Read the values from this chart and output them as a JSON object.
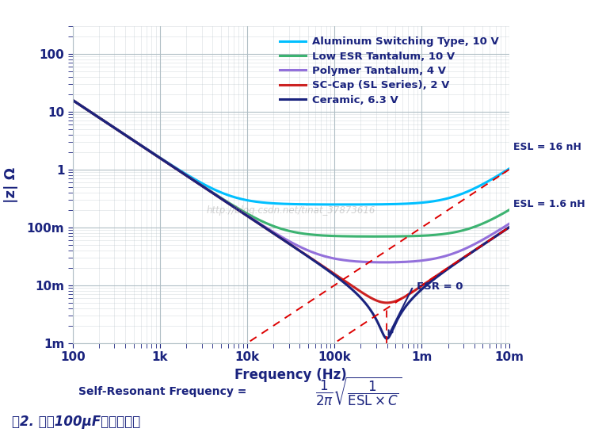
{
  "freq_range": [
    100,
    10000000.0
  ],
  "C": 0.0001,
  "lines": [
    {
      "label": "Aluminum Switching Type, 10 V",
      "color": "#00BFFF",
      "ESR": 0.25,
      "ESL": 1.6e-08,
      "lw": 2.2
    },
    {
      "label": "Low ESR Tantalum, 10 V",
      "color": "#3CB371",
      "ESR": 0.07,
      "ESL": 3e-09,
      "lw": 2.2
    },
    {
      "label": "Polymer Tantalum, 4 V",
      "color": "#9370DB",
      "ESR": 0.025,
      "ESL": 1.8e-09,
      "lw": 2.2
    },
    {
      "label": "SC-Cap (SL Series), 2 V",
      "color": "#CC2222",
      "ESR": 0.005,
      "ESL": 1.6e-09,
      "lw": 2.2
    },
    {
      "label": "Ceramic, 6.3 V",
      "color": "#1A237E",
      "ESR": 0.0012,
      "ESL": 1.6e-09,
      "lw": 2.2
    }
  ],
  "esl_lines": [
    {
      "ESL": 1.6e-08,
      "label": "ESL = 16 nH",
      "x_label": 8000000.0
    },
    {
      "ESL": 1.6e-09,
      "label": "ESL = 1.6 nH",
      "x_label": 8000000.0
    }
  ],
  "ylabel": "|z| Ω",
  "xlabel": "Frequency (Hz)",
  "yticks": [
    0.001,
    0.01,
    0.1,
    1.0,
    10.0,
    100.0
  ],
  "ytick_labels": [
    "1m",
    "10m",
    "100m",
    "1",
    "10",
    "100"
  ],
  "xticks": [
    100,
    1000,
    10000,
    100000,
    1000000,
    10000000
  ],
  "xtick_labels": [
    "100",
    "1k",
    "10k",
    "100k",
    "1m",
    "10m"
  ],
  "ylim": [
    0.001,
    300
  ],
  "xlim": [
    100,
    10000000.0
  ],
  "bg_color": "#FFFFFF",
  "plot_bg_color": "#FFFFFF",
  "grid_color": "#B0BEC5",
  "title_color": "#1A237E",
  "formula_text": "Self-Resonant Frequency = ",
  "caption": "图2. 各种100μF电容的阻抗",
  "watermark": "http://blog.csdn.net/tinat_37873616"
}
